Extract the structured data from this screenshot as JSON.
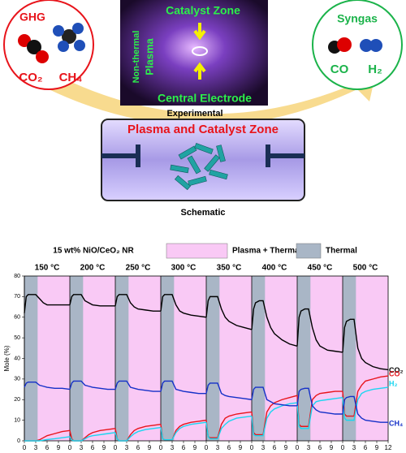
{
  "diagram": {
    "ghg": {
      "title": "GHG",
      "co2": "CO₂",
      "ch4": "CH₄"
    },
    "experimental": {
      "catalyst_zone": "Catalyst Zone",
      "non_thermal": "Non-thermal",
      "plasma": "Plasma",
      "central_electrode": "Central Electrode",
      "caption": "Experimental"
    },
    "syngas": {
      "title": "Syngas",
      "co": "CO",
      "h2": "H₂"
    },
    "schematic": {
      "zone": "Plasma and Catalyst Zone",
      "caption": "Schematic"
    }
  },
  "chart_data": {
    "type": "line",
    "title": "15 wt% NiO/CeO₂ NR",
    "ylabel": "Mole (%)",
    "legend": [
      {
        "name": "Plasma + Thermal",
        "color": "#f9c9f5"
      },
      {
        "name": "Thermal",
        "color": "#a9b6c6"
      }
    ],
    "thermal_interval": [
      0,
      3.5
    ],
    "panels": [
      "150 °C",
      "200 °C",
      "250 °C",
      "300 °C",
      "350 °C",
      "400 °C",
      "450 °C",
      "500 °C"
    ],
    "x": [
      0,
      0.5,
      1,
      2,
      3,
      4,
      5,
      6,
      8,
      10,
      12
    ],
    "xlim": [
      0,
      12
    ],
    "xticks": [
      0,
      3,
      6,
      9,
      12
    ],
    "ylim": [
      0,
      80
    ],
    "yticks": [
      0,
      10,
      20,
      30,
      40,
      50,
      60,
      70,
      80
    ],
    "series": [
      {
        "name": "CO₂",
        "color": "#000000",
        "values": [
          [
            62,
            70,
            71,
            71,
            71,
            69,
            67,
            66,
            66,
            66,
            66
          ],
          [
            66,
            70,
            71,
            71,
            71,
            68,
            67,
            66,
            65.5,
            65.5,
            65.5
          ],
          [
            65.5,
            70,
            71,
            71,
            71,
            67,
            65,
            64,
            63.5,
            63,
            63
          ],
          [
            63,
            70,
            71,
            71,
            71,
            66,
            63,
            62,
            61,
            60.5,
            60
          ],
          [
            60,
            68,
            70,
            70,
            70,
            64,
            60,
            58,
            56,
            55,
            54
          ],
          [
            54,
            64,
            67,
            68,
            68,
            60,
            55,
            52,
            49,
            47,
            46
          ],
          [
            46,
            60,
            63,
            64,
            64,
            55,
            49,
            46,
            44,
            43.5,
            43
          ],
          [
            43,
            55,
            58,
            59,
            59,
            45,
            40,
            38,
            36,
            35,
            34.5
          ]
        ]
      },
      {
        "name": "CO",
        "color": "#e8141b",
        "values": [
          [
            0,
            0,
            0,
            0,
            0,
            0.5,
            1.5,
            2.5,
            3.5,
            4.5,
            5
          ],
          [
            5,
            1,
            0,
            0,
            0,
            1.5,
            3,
            4,
            5,
            5.5,
            6
          ],
          [
            6,
            1,
            0,
            0,
            0,
            3,
            5,
            6,
            7,
            7.5,
            8
          ],
          [
            8,
            1,
            0.5,
            0.5,
            0.5,
            5,
            7,
            8,
            9,
            9.5,
            10
          ],
          [
            10,
            2,
            1.5,
            1.5,
            1.5,
            8,
            11,
            12,
            13,
            13.5,
            14
          ],
          [
            14,
            4,
            3,
            3,
            3,
            14,
            17,
            18.5,
            20,
            21,
            22
          ],
          [
            22,
            8,
            7,
            7,
            7,
            20,
            22,
            23,
            23.5,
            24,
            24
          ],
          [
            24,
            13,
            12,
            12,
            12,
            24,
            27,
            29,
            30,
            31,
            31.5
          ]
        ]
      },
      {
        "name": "H₂",
        "color": "#1ad6f0",
        "values": [
          [
            0,
            0,
            0,
            0,
            0,
            0,
            0.3,
            0.6,
            1,
            1.5,
            2
          ],
          [
            2,
            0.5,
            0,
            0,
            0,
            1,
            2,
            2.5,
            3,
            3.5,
            4
          ],
          [
            4,
            1,
            0,
            0,
            0,
            2,
            3.5,
            4.5,
            5.5,
            6,
            6.5
          ],
          [
            6.5,
            1,
            0.5,
            0.5,
            0.5,
            4,
            6,
            7,
            8,
            8.5,
            9
          ],
          [
            9,
            2,
            1,
            1,
            1,
            6,
            8,
            9.5,
            11,
            11.5,
            12
          ],
          [
            12,
            3,
            2.5,
            2.5,
            2.5,
            11,
            14,
            15.5,
            17,
            18,
            18.5
          ],
          [
            18.5,
            7,
            6,
            6,
            6,
            17,
            19,
            19.5,
            20,
            20.5,
            21
          ],
          [
            21,
            11,
            10,
            10,
            10,
            20,
            23,
            24,
            25,
            25.5,
            26
          ]
        ]
      },
      {
        "name": "CH₄",
        "color": "#1530c8",
        "values": [
          [
            26,
            28,
            28.5,
            28.5,
            28.5,
            27,
            26.5,
            26,
            25.5,
            25.5,
            25
          ],
          [
            25,
            28,
            29,
            29,
            29,
            27,
            26.5,
            26,
            25.5,
            25,
            25
          ],
          [
            25,
            28,
            29,
            29,
            29,
            26,
            25.5,
            25,
            24.5,
            24,
            24
          ],
          [
            24,
            28,
            29,
            29,
            29,
            25,
            24.5,
            24,
            23.5,
            23,
            23
          ],
          [
            23,
            27,
            28,
            28,
            28,
            23,
            22,
            21.5,
            21,
            20.5,
            20
          ],
          [
            20,
            25,
            26,
            26,
            26,
            20,
            19,
            18,
            17.5,
            17,
            17
          ],
          [
            17,
            24,
            25,
            25.5,
            25.5,
            17,
            15,
            14,
            13.5,
            13,
            13
          ],
          [
            13,
            20,
            21,
            21.5,
            21.5,
            13,
            11,
            10,
            9.5,
            9,
            9
          ]
        ]
      }
    ]
  }
}
